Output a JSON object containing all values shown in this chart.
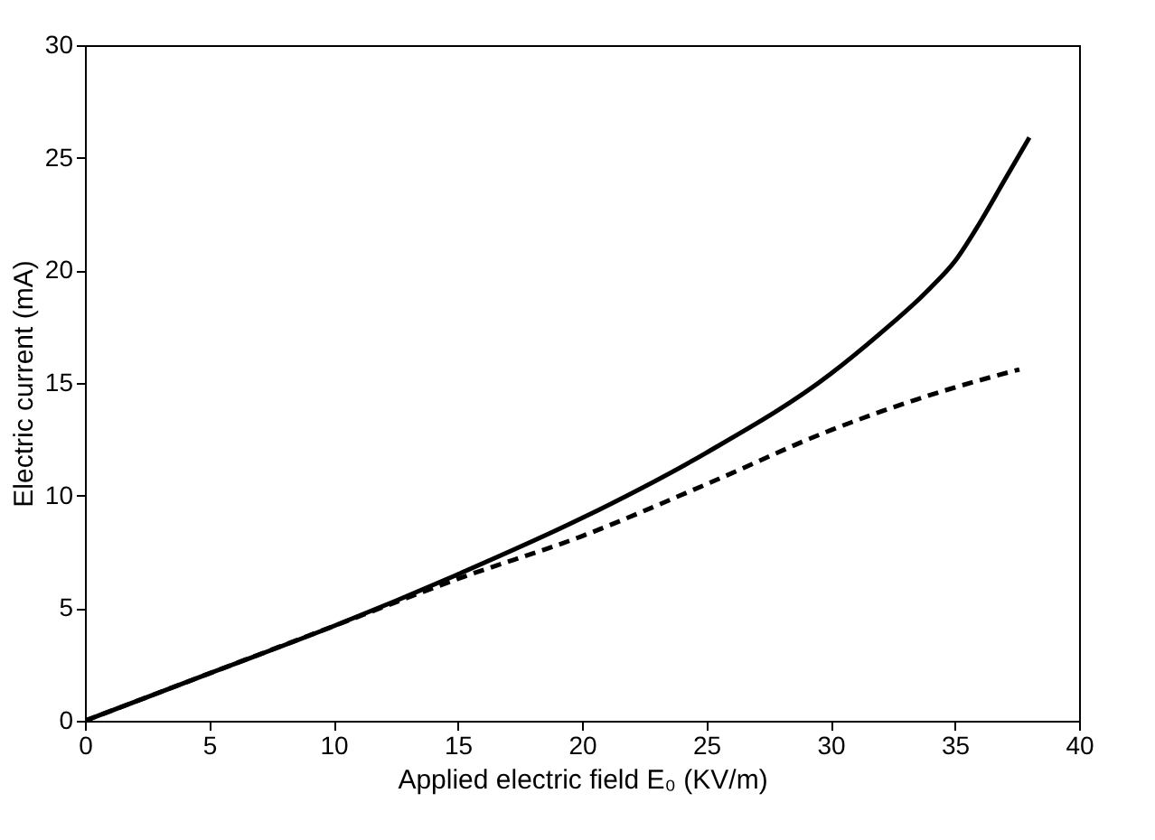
{
  "chart_data": {
    "type": "line",
    "xlabel": "Applied electric field E₀ (KV/m)",
    "ylabel": "Electric current (mA)",
    "xlim": [
      0,
      40
    ],
    "xticks": [
      0,
      5,
      10,
      15,
      20,
      25,
      30,
      35,
      40
    ],
    "ylim": [
      0,
      30
    ],
    "yticks": [
      0,
      5,
      10,
      15,
      20,
      25,
      30
    ],
    "series": [
      {
        "color": "#000000",
        "line_style": "solid",
        "x": [
          0,
          5,
          10,
          15,
          20,
          25,
          30,
          32,
          34,
          35,
          36,
          37,
          38
        ],
        "values": [
          0,
          2.1,
          4.2,
          6.5,
          9.0,
          11.9,
          15.4,
          17.2,
          19.2,
          20.4,
          22.1,
          24.0,
          25.9
        ]
      },
      {
        "color": "#000000",
        "line_style": "dashed",
        "x": [
          0,
          5,
          10,
          15,
          20,
          25,
          30,
          35,
          37.6
        ],
        "values": [
          0,
          2.1,
          4.2,
          6.3,
          8.2,
          10.5,
          12.9,
          14.8,
          15.6
        ]
      }
    ]
  }
}
